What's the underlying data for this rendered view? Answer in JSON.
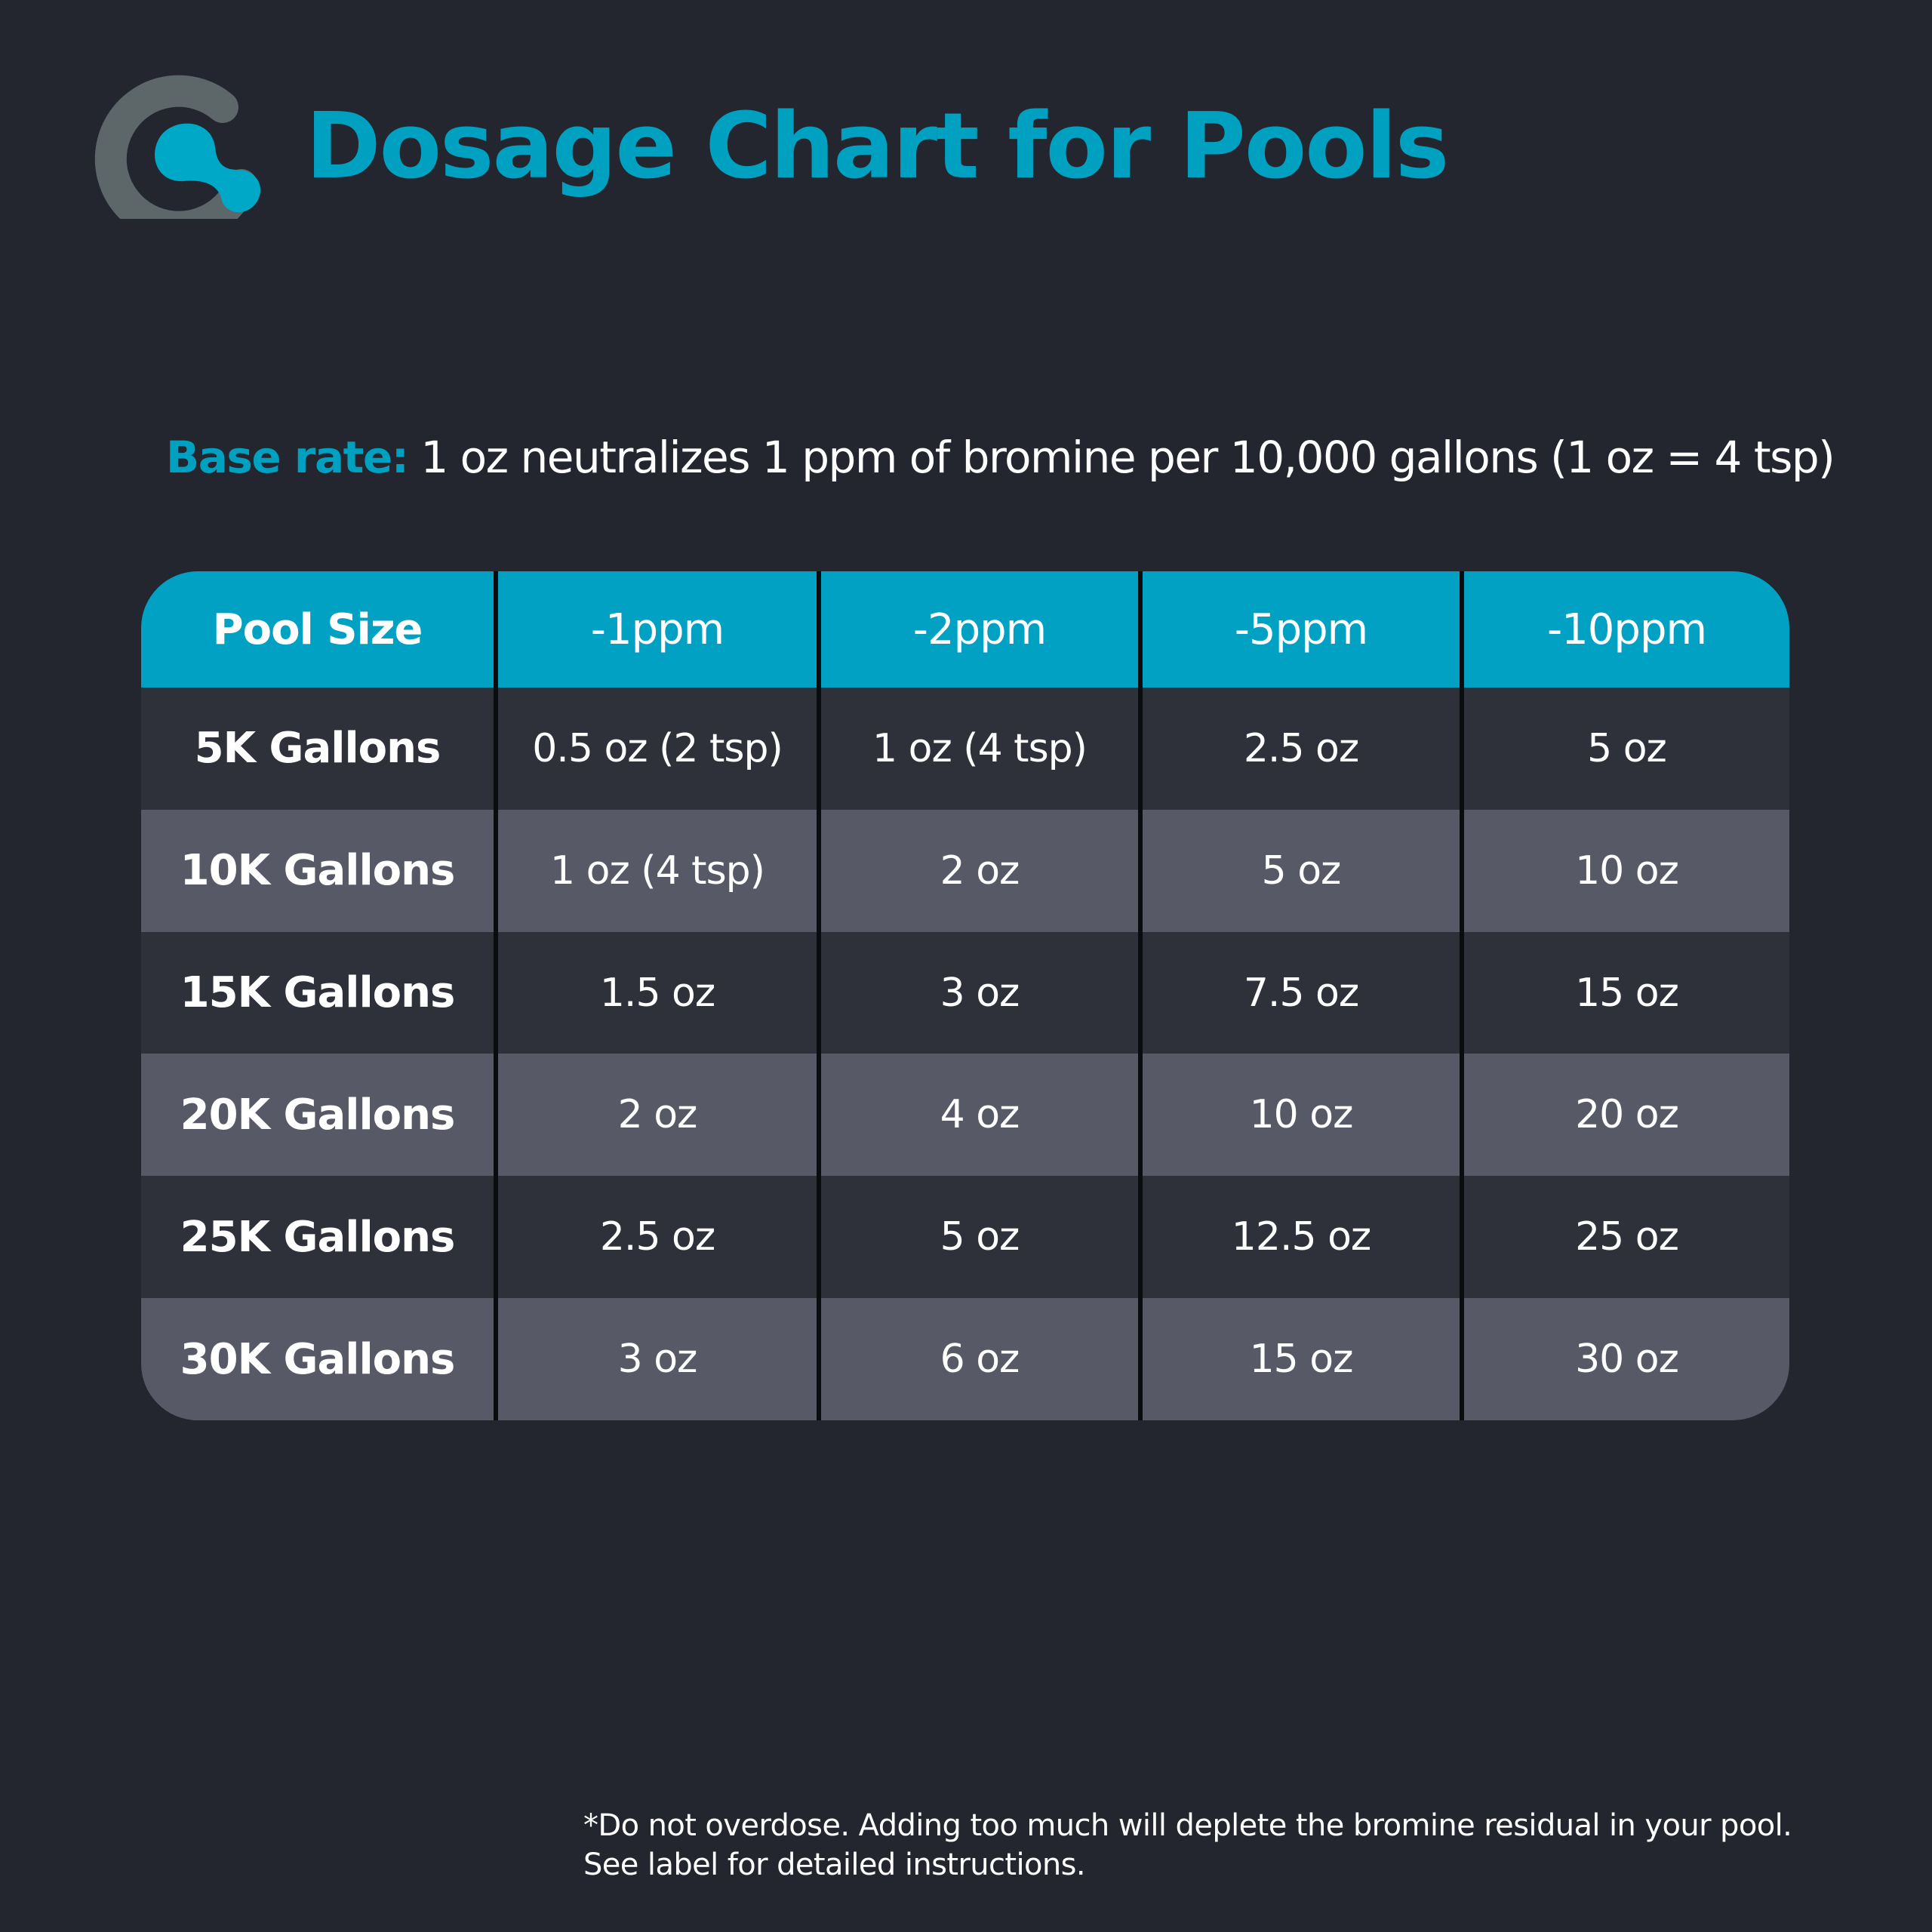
{
  "header": {
    "title": "Dosage Chart for Pools",
    "logo_icon": "pool-drop-logo-icon"
  },
  "base_rate": {
    "label": "Base rate:",
    "text": "1 oz neutralizes 1 ppm of bromine per 10,000 gallons (1 oz = 4 tsp)"
  },
  "table": {
    "headers": [
      "Pool Size",
      "-1ppm",
      "-2ppm",
      "-5ppm",
      "-10ppm"
    ],
    "rows": [
      [
        "5K Gallons",
        "0.5 oz (2 tsp)",
        "1 oz (4 tsp)",
        "2.5 oz",
        "5 oz"
      ],
      [
        "10K Gallons",
        "1 oz (4 tsp)",
        "2 oz",
        "5 oz",
        "10 oz"
      ],
      [
        "15K Gallons",
        "1.5 oz",
        "3 oz",
        "7.5 oz",
        "15 oz"
      ],
      [
        "20K Gallons",
        "2 oz",
        "4 oz",
        "10 oz",
        "20 oz"
      ],
      [
        "25K Gallons",
        "2.5 oz",
        "5 oz",
        "12.5 oz",
        "25 oz"
      ],
      [
        "30K Gallons",
        "3 oz",
        "6 oz",
        "15 oz",
        "30 oz"
      ]
    ]
  },
  "footnote": {
    "line1": "*Do not overdose. Adding too much will deplete the bromine residual in your pool.",
    "line2": "See label for detailed instructions."
  },
  "colors": {
    "background": "#23262f",
    "accent": "#00a0c0",
    "logo_gray": "#5d6668",
    "row_dark": "#2e313a",
    "row_light": "#575a66",
    "divider": "#0b0c10"
  }
}
